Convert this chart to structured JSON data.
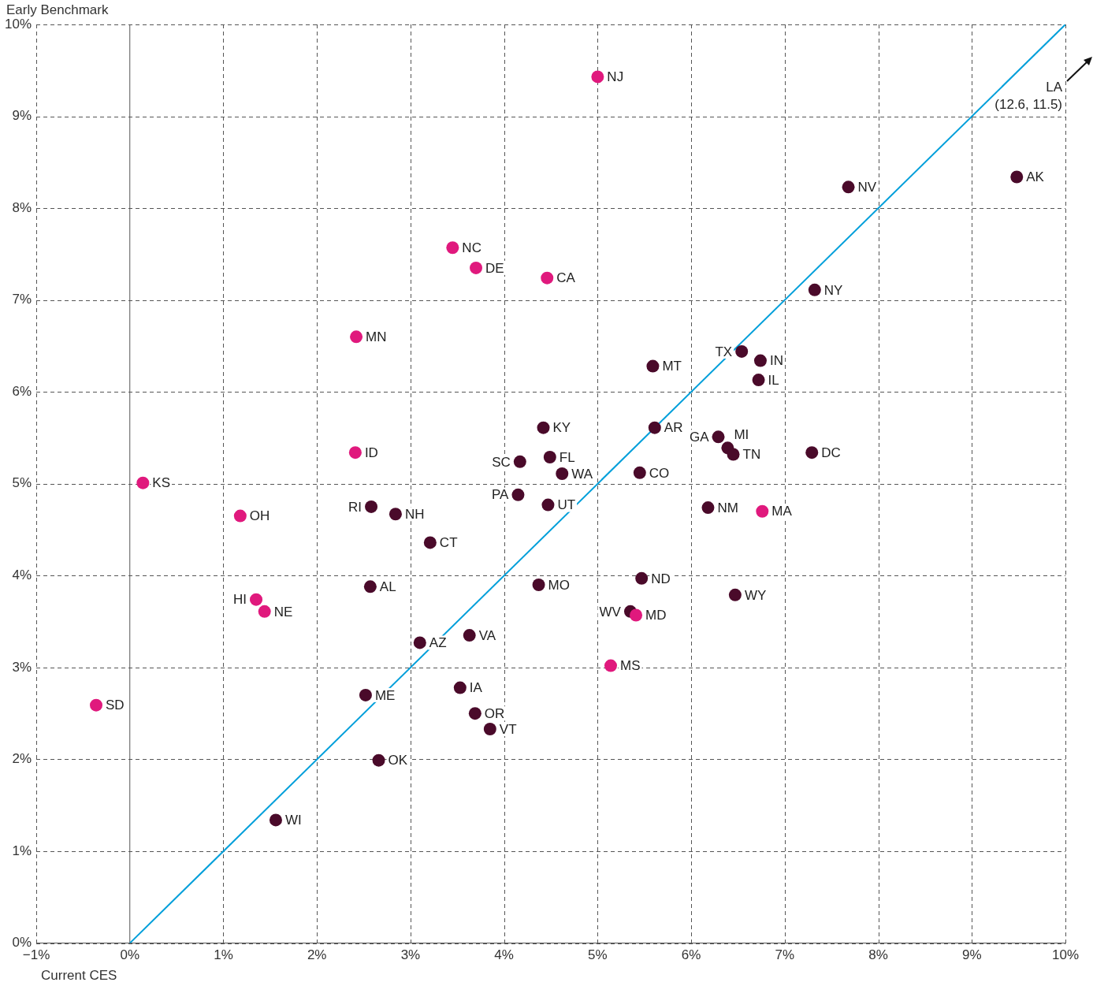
{
  "chart_data": {
    "type": "scatter",
    "xlabel": "Current CES",
    "ylabel": "Early Benchmark",
    "xlim": [
      -1,
      10
    ],
    "ylim": [
      0,
      10
    ],
    "xticks": [
      {
        "value": -1,
        "label": "−1%"
      },
      {
        "value": 0,
        "label": "0%"
      },
      {
        "value": 1,
        "label": "1%"
      },
      {
        "value": 2,
        "label": "2%"
      },
      {
        "value": 3,
        "label": "3%"
      },
      {
        "value": 4,
        "label": "4%"
      },
      {
        "value": 5,
        "label": "5%"
      },
      {
        "value": 6,
        "label": "6%"
      },
      {
        "value": 7,
        "label": "7%"
      },
      {
        "value": 8,
        "label": "8%"
      },
      {
        "value": 9,
        "label": "9%"
      },
      {
        "value": 10,
        "label": "10%"
      }
    ],
    "yticks": [
      {
        "value": 0,
        "label": "0%"
      },
      {
        "value": 1,
        "label": "1%"
      },
      {
        "value": 2,
        "label": "2%"
      },
      {
        "value": 3,
        "label": "3%"
      },
      {
        "value": 4,
        "label": "4%"
      },
      {
        "value": 5,
        "label": "5%"
      },
      {
        "value": 6,
        "label": "6%"
      },
      {
        "value": 7,
        "label": "7%"
      },
      {
        "value": 8,
        "label": "8%"
      },
      {
        "value": 9,
        "label": "9%"
      },
      {
        "value": 10,
        "label": "10%"
      }
    ],
    "grid": true,
    "legend": false,
    "marker": "circle",
    "ref_lines": [
      {
        "axis": "x",
        "value": 0,
        "color": "#555555",
        "line_style": "solid"
      }
    ],
    "series": [
      {
        "color": "#e0197d",
        "x": [
          5.0,
          3.45,
          3.7,
          4.46,
          2.42,
          2.41,
          0.14,
          1.18,
          6.76,
          1.35,
          1.44,
          5.41,
          5.14,
          -0.36
        ],
        "values": [
          9.43,
          7.57,
          7.35,
          7.24,
          6.6,
          5.34,
          5.01,
          4.65,
          4.7,
          3.74,
          3.61,
          3.57,
          3.02,
          2.59
        ]
      },
      {
        "color": "#4a0a2a",
        "x": [
          7.68,
          9.48,
          7.32,
          5.59,
          6.54,
          6.74,
          6.72,
          4.42,
          5.61,
          6.29,
          6.39,
          6.45,
          7.29,
          4.17,
          4.49,
          4.62,
          5.45,
          4.15,
          4.47,
          2.58,
          6.18,
          2.84,
          3.21,
          5.47,
          2.57,
          4.37,
          6.47,
          5.35,
          3.63,
          3.1,
          3.53,
          2.52,
          3.69,
          3.85,
          2.66,
          1.56
        ],
        "values": [
          8.23,
          8.34,
          7.11,
          6.28,
          6.44,
          6.34,
          6.13,
          5.61,
          5.61,
          5.51,
          5.39,
          5.32,
          5.34,
          5.24,
          5.29,
          5.11,
          5.12,
          4.88,
          4.77,
          4.75,
          4.74,
          4.67,
          4.36,
          3.97,
          3.88,
          3.9,
          3.79,
          3.61,
          3.35,
          3.27,
          2.78,
          2.7,
          2.5,
          2.33,
          1.99,
          1.34
        ]
      },
      {
        "type": "line",
        "color": "#009fda",
        "marker": "none",
        "x": [
          0,
          10
        ],
        "values": [
          0,
          10
        ]
      }
    ],
    "annotations": [
      {
        "text": "NJ",
        "x": 5.0,
        "y": 9.43
      },
      {
        "text": "NC",
        "x": 3.45,
        "y": 7.57
      },
      {
        "text": "DE",
        "x": 3.7,
        "y": 7.35
      },
      {
        "text": "CA",
        "x": 4.46,
        "y": 7.24
      },
      {
        "text": "MN",
        "x": 2.42,
        "y": 6.6
      },
      {
        "text": "ID",
        "x": 2.41,
        "y": 5.34
      },
      {
        "text": "KS",
        "x": 0.14,
        "y": 5.01
      },
      {
        "text": "OH",
        "x": 1.18,
        "y": 4.65
      },
      {
        "text": "MA",
        "x": 6.76,
        "y": 4.7
      },
      {
        "text": "HI",
        "x": 1.35,
        "y": 3.74
      },
      {
        "text": "NE",
        "x": 1.44,
        "y": 3.61
      },
      {
        "text": "MD",
        "x": 5.41,
        "y": 3.57
      },
      {
        "text": "MS",
        "x": 5.14,
        "y": 3.02
      },
      {
        "text": "SD",
        "x": -0.36,
        "y": 2.59
      },
      {
        "text": "NV",
        "x": 7.68,
        "y": 8.23
      },
      {
        "text": "AK",
        "x": 9.48,
        "y": 8.34
      },
      {
        "text": "NY",
        "x": 7.32,
        "y": 7.11
      },
      {
        "text": "MT",
        "x": 5.59,
        "y": 6.28
      },
      {
        "text": "TX",
        "x": 6.54,
        "y": 6.44
      },
      {
        "text": "IN",
        "x": 6.74,
        "y": 6.34
      },
      {
        "text": "IL",
        "x": 6.72,
        "y": 6.13
      },
      {
        "text": "KY",
        "x": 4.42,
        "y": 5.61
      },
      {
        "text": "AR",
        "x": 5.61,
        "y": 5.61
      },
      {
        "text": "GA",
        "x": 6.29,
        "y": 5.51
      },
      {
        "text": "MI",
        "x": 6.39,
        "y": 5.39
      },
      {
        "text": "TN",
        "x": 6.45,
        "y": 5.32
      },
      {
        "text": "DC",
        "x": 7.29,
        "y": 5.34
      },
      {
        "text": "SC",
        "x": 4.17,
        "y": 5.24
      },
      {
        "text": "FL",
        "x": 4.49,
        "y": 5.29
      },
      {
        "text": "WA",
        "x": 4.62,
        "y": 5.11
      },
      {
        "text": "CO",
        "x": 5.45,
        "y": 5.12
      },
      {
        "text": "PA",
        "x": 4.15,
        "y": 4.88
      },
      {
        "text": "UT",
        "x": 4.47,
        "y": 4.77
      },
      {
        "text": "RI",
        "x": 2.58,
        "y": 4.75
      },
      {
        "text": "NM",
        "x": 6.18,
        "y": 4.74
      },
      {
        "text": "NH",
        "x": 2.84,
        "y": 4.67
      },
      {
        "text": "CT",
        "x": 3.21,
        "y": 4.36
      },
      {
        "text": "ND",
        "x": 5.47,
        "y": 3.97
      },
      {
        "text": "AL",
        "x": 2.57,
        "y": 3.88
      },
      {
        "text": "MO",
        "x": 4.37,
        "y": 3.9
      },
      {
        "text": "WY",
        "x": 6.47,
        "y": 3.79
      },
      {
        "text": "WV",
        "x": 5.35,
        "y": 3.61
      },
      {
        "text": "VA",
        "x": 3.63,
        "y": 3.35
      },
      {
        "text": "AZ",
        "x": 3.1,
        "y": 3.27
      },
      {
        "text": "IA",
        "x": 3.53,
        "y": 2.78
      },
      {
        "text": "ME",
        "x": 2.52,
        "y": 2.7
      },
      {
        "text": "OR",
        "x": 3.69,
        "y": 2.5
      },
      {
        "text": "VT",
        "x": 3.85,
        "y": 2.33
      },
      {
        "text": "OK",
        "x": 2.66,
        "y": 1.99
      },
      {
        "text": "WI",
        "x": 1.56,
        "y": 1.34
      },
      "LA",
      "(12.6, 11.5)"
    ]
  }
}
